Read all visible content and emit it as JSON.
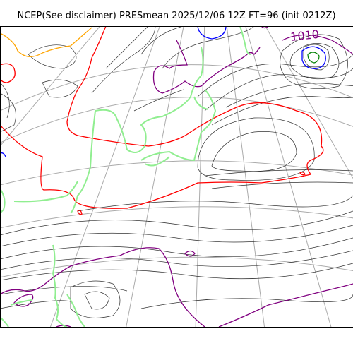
{
  "title": "NCEP(See disclaimer) PRESmean 2025/12/06 12Z FT=96 (init 0212Z)",
  "contour_labels": [
    {
      "text": "1010",
      "color": "#800080"
    }
  ],
  "colors": {
    "isobar": "#333333",
    "highlight_1010": "#800080",
    "highlight_1020": "#ff0000",
    "low_inner": "#0000ff",
    "low_core": "#008000",
    "coastline": "#90ee90",
    "orange_contour": "#ffa500",
    "graticule": "#aaaaaa"
  }
}
